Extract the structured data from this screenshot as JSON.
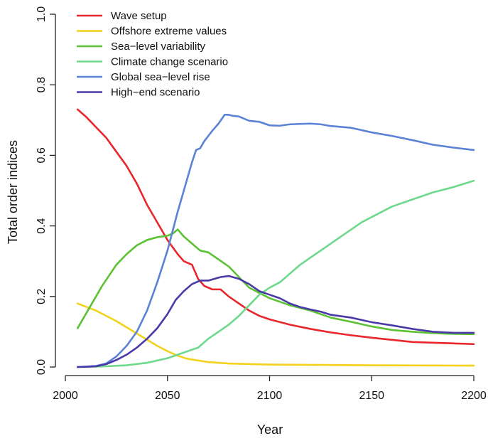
{
  "chart_data": {
    "type": "line",
    "title": "",
    "xlabel": "Year",
    "ylabel": "Total order indices",
    "xlim": [
      2000,
      2200
    ],
    "ylim": [
      0,
      1.0
    ],
    "xticks": [
      2000,
      2050,
      2100,
      2150,
      2200
    ],
    "yticks": [
      0.0,
      0.2,
      0.4,
      0.6,
      0.8,
      1.0
    ],
    "ytick_labels": [
      "0.0",
      "0.2",
      "0.4",
      "0.6",
      "0.8",
      "1.0"
    ],
    "grid": false,
    "legend_position": "top-left",
    "series": [
      {
        "name": "Wave setup",
        "color": "#e8262b",
        "points": [
          [
            2006,
            0.73
          ],
          [
            2010,
            0.71
          ],
          [
            2015,
            0.68
          ],
          [
            2020,
            0.65
          ],
          [
            2025,
            0.61
          ],
          [
            2030,
            0.57
          ],
          [
            2035,
            0.52
          ],
          [
            2040,
            0.46
          ],
          [
            2045,
            0.41
          ],
          [
            2050,
            0.36
          ],
          [
            2055,
            0.32
          ],
          [
            2058,
            0.3
          ],
          [
            2062,
            0.29
          ],
          [
            2065,
            0.25
          ],
          [
            2068,
            0.23
          ],
          [
            2072,
            0.22
          ],
          [
            2076,
            0.22
          ],
          [
            2080,
            0.2
          ],
          [
            2085,
            0.18
          ],
          [
            2090,
            0.16
          ],
          [
            2095,
            0.145
          ],
          [
            2100,
            0.135
          ],
          [
            2110,
            0.12
          ],
          [
            2120,
            0.108
          ],
          [
            2130,
            0.098
          ],
          [
            2140,
            0.09
          ],
          [
            2150,
            0.083
          ],
          [
            2160,
            0.077
          ],
          [
            2170,
            0.071
          ],
          [
            2180,
            0.069
          ],
          [
            2190,
            0.067
          ],
          [
            2200,
            0.065
          ]
        ]
      },
      {
        "name": "Offshore extreme values",
        "color": "#f2d21c",
        "points": [
          [
            2006,
            0.18
          ],
          [
            2015,
            0.16
          ],
          [
            2025,
            0.13
          ],
          [
            2035,
            0.095
          ],
          [
            2045,
            0.06
          ],
          [
            2050,
            0.045
          ],
          [
            2055,
            0.032
          ],
          [
            2060,
            0.023
          ],
          [
            2070,
            0.014
          ],
          [
            2080,
            0.01
          ],
          [
            2100,
            0.007
          ],
          [
            2150,
            0.005
          ],
          [
            2200,
            0.004
          ]
        ]
      },
      {
        "name": "Sea−level variability",
        "color": "#5cc234",
        "points": [
          [
            2006,
            0.11
          ],
          [
            2012,
            0.17
          ],
          [
            2018,
            0.23
          ],
          [
            2025,
            0.29
          ],
          [
            2030,
            0.32
          ],
          [
            2035,
            0.345
          ],
          [
            2040,
            0.36
          ],
          [
            2045,
            0.368
          ],
          [
            2050,
            0.372
          ],
          [
            2053,
            0.38
          ],
          [
            2055,
            0.39
          ],
          [
            2058,
            0.37
          ],
          [
            2062,
            0.35
          ],
          [
            2066,
            0.33
          ],
          [
            2070,
            0.325
          ],
          [
            2075,
            0.305
          ],
          [
            2080,
            0.285
          ],
          [
            2085,
            0.255
          ],
          [
            2090,
            0.225
          ],
          [
            2095,
            0.21
          ],
          [
            2100,
            0.195
          ],
          [
            2110,
            0.175
          ],
          [
            2120,
            0.16
          ],
          [
            2130,
            0.14
          ],
          [
            2140,
            0.128
          ],
          [
            2150,
            0.115
          ],
          [
            2160,
            0.105
          ],
          [
            2170,
            0.1
          ],
          [
            2180,
            0.096
          ],
          [
            2190,
            0.094
          ],
          [
            2200,
            0.093
          ]
        ]
      },
      {
        "name": "Climate change scenario",
        "color": "#6ed88c",
        "points": [
          [
            2006,
            0.0
          ],
          [
            2020,
            0.002
          ],
          [
            2030,
            0.005
          ],
          [
            2040,
            0.012
          ],
          [
            2050,
            0.025
          ],
          [
            2060,
            0.045
          ],
          [
            2065,
            0.055
          ],
          [
            2070,
            0.08
          ],
          [
            2075,
            0.1
          ],
          [
            2080,
            0.12
          ],
          [
            2085,
            0.145
          ],
          [
            2090,
            0.175
          ],
          [
            2095,
            0.205
          ],
          [
            2100,
            0.225
          ],
          [
            2105,
            0.24
          ],
          [
            2110,
            0.265
          ],
          [
            2115,
            0.29
          ],
          [
            2120,
            0.31
          ],
          [
            2125,
            0.33
          ],
          [
            2130,
            0.35
          ],
          [
            2135,
            0.37
          ],
          [
            2140,
            0.39
          ],
          [
            2145,
            0.41
          ],
          [
            2150,
            0.425
          ],
          [
            2160,
            0.455
          ],
          [
            2170,
            0.475
          ],
          [
            2180,
            0.495
          ],
          [
            2190,
            0.51
          ],
          [
            2200,
            0.528
          ]
        ]
      },
      {
        "name": "Global sea−level rise",
        "color": "#5b82d6",
        "points": [
          [
            2006,
            0.0
          ],
          [
            2015,
            0.003
          ],
          [
            2020,
            0.01
          ],
          [
            2025,
            0.03
          ],
          [
            2030,
            0.06
          ],
          [
            2035,
            0.1
          ],
          [
            2040,
            0.16
          ],
          [
            2045,
            0.24
          ],
          [
            2050,
            0.33
          ],
          [
            2055,
            0.44
          ],
          [
            2060,
            0.54
          ],
          [
            2062,
            0.58
          ],
          [
            2064,
            0.615
          ],
          [
            2066,
            0.62
          ],
          [
            2068,
            0.64
          ],
          [
            2070,
            0.655
          ],
          [
            2072,
            0.67
          ],
          [
            2075,
            0.69
          ],
          [
            2078,
            0.715
          ],
          [
            2080,
            0.715
          ],
          [
            2082,
            0.712
          ],
          [
            2085,
            0.71
          ],
          [
            2090,
            0.698
          ],
          [
            2095,
            0.695
          ],
          [
            2100,
            0.685
          ],
          [
            2105,
            0.684
          ],
          [
            2110,
            0.688
          ],
          [
            2120,
            0.69
          ],
          [
            2125,
            0.688
          ],
          [
            2130,
            0.683
          ],
          [
            2140,
            0.678
          ],
          [
            2150,
            0.665
          ],
          [
            2160,
            0.655
          ],
          [
            2170,
            0.643
          ],
          [
            2180,
            0.63
          ],
          [
            2190,
            0.622
          ],
          [
            2200,
            0.615
          ]
        ]
      },
      {
        "name": "High−end scenario",
        "color": "#4a3aa8",
        "points": [
          [
            2006,
            0.0
          ],
          [
            2015,
            0.002
          ],
          [
            2020,
            0.008
          ],
          [
            2025,
            0.02
          ],
          [
            2030,
            0.035
          ],
          [
            2035,
            0.055
          ],
          [
            2040,
            0.08
          ],
          [
            2045,
            0.11
          ],
          [
            2050,
            0.15
          ],
          [
            2054,
            0.19
          ],
          [
            2058,
            0.215
          ],
          [
            2062,
            0.235
          ],
          [
            2066,
            0.245
          ],
          [
            2070,
            0.245
          ],
          [
            2073,
            0.25
          ],
          [
            2076,
            0.255
          ],
          [
            2080,
            0.258
          ],
          [
            2085,
            0.25
          ],
          [
            2090,
            0.235
          ],
          [
            2095,
            0.215
          ],
          [
            2100,
            0.205
          ],
          [
            2105,
            0.195
          ],
          [
            2110,
            0.18
          ],
          [
            2115,
            0.17
          ],
          [
            2120,
            0.163
          ],
          [
            2125,
            0.157
          ],
          [
            2130,
            0.148
          ],
          [
            2140,
            0.14
          ],
          [
            2150,
            0.127
          ],
          [
            2160,
            0.118
          ],
          [
            2170,
            0.108
          ],
          [
            2180,
            0.1
          ],
          [
            2190,
            0.097
          ],
          [
            2200,
            0.097
          ]
        ]
      }
    ]
  }
}
